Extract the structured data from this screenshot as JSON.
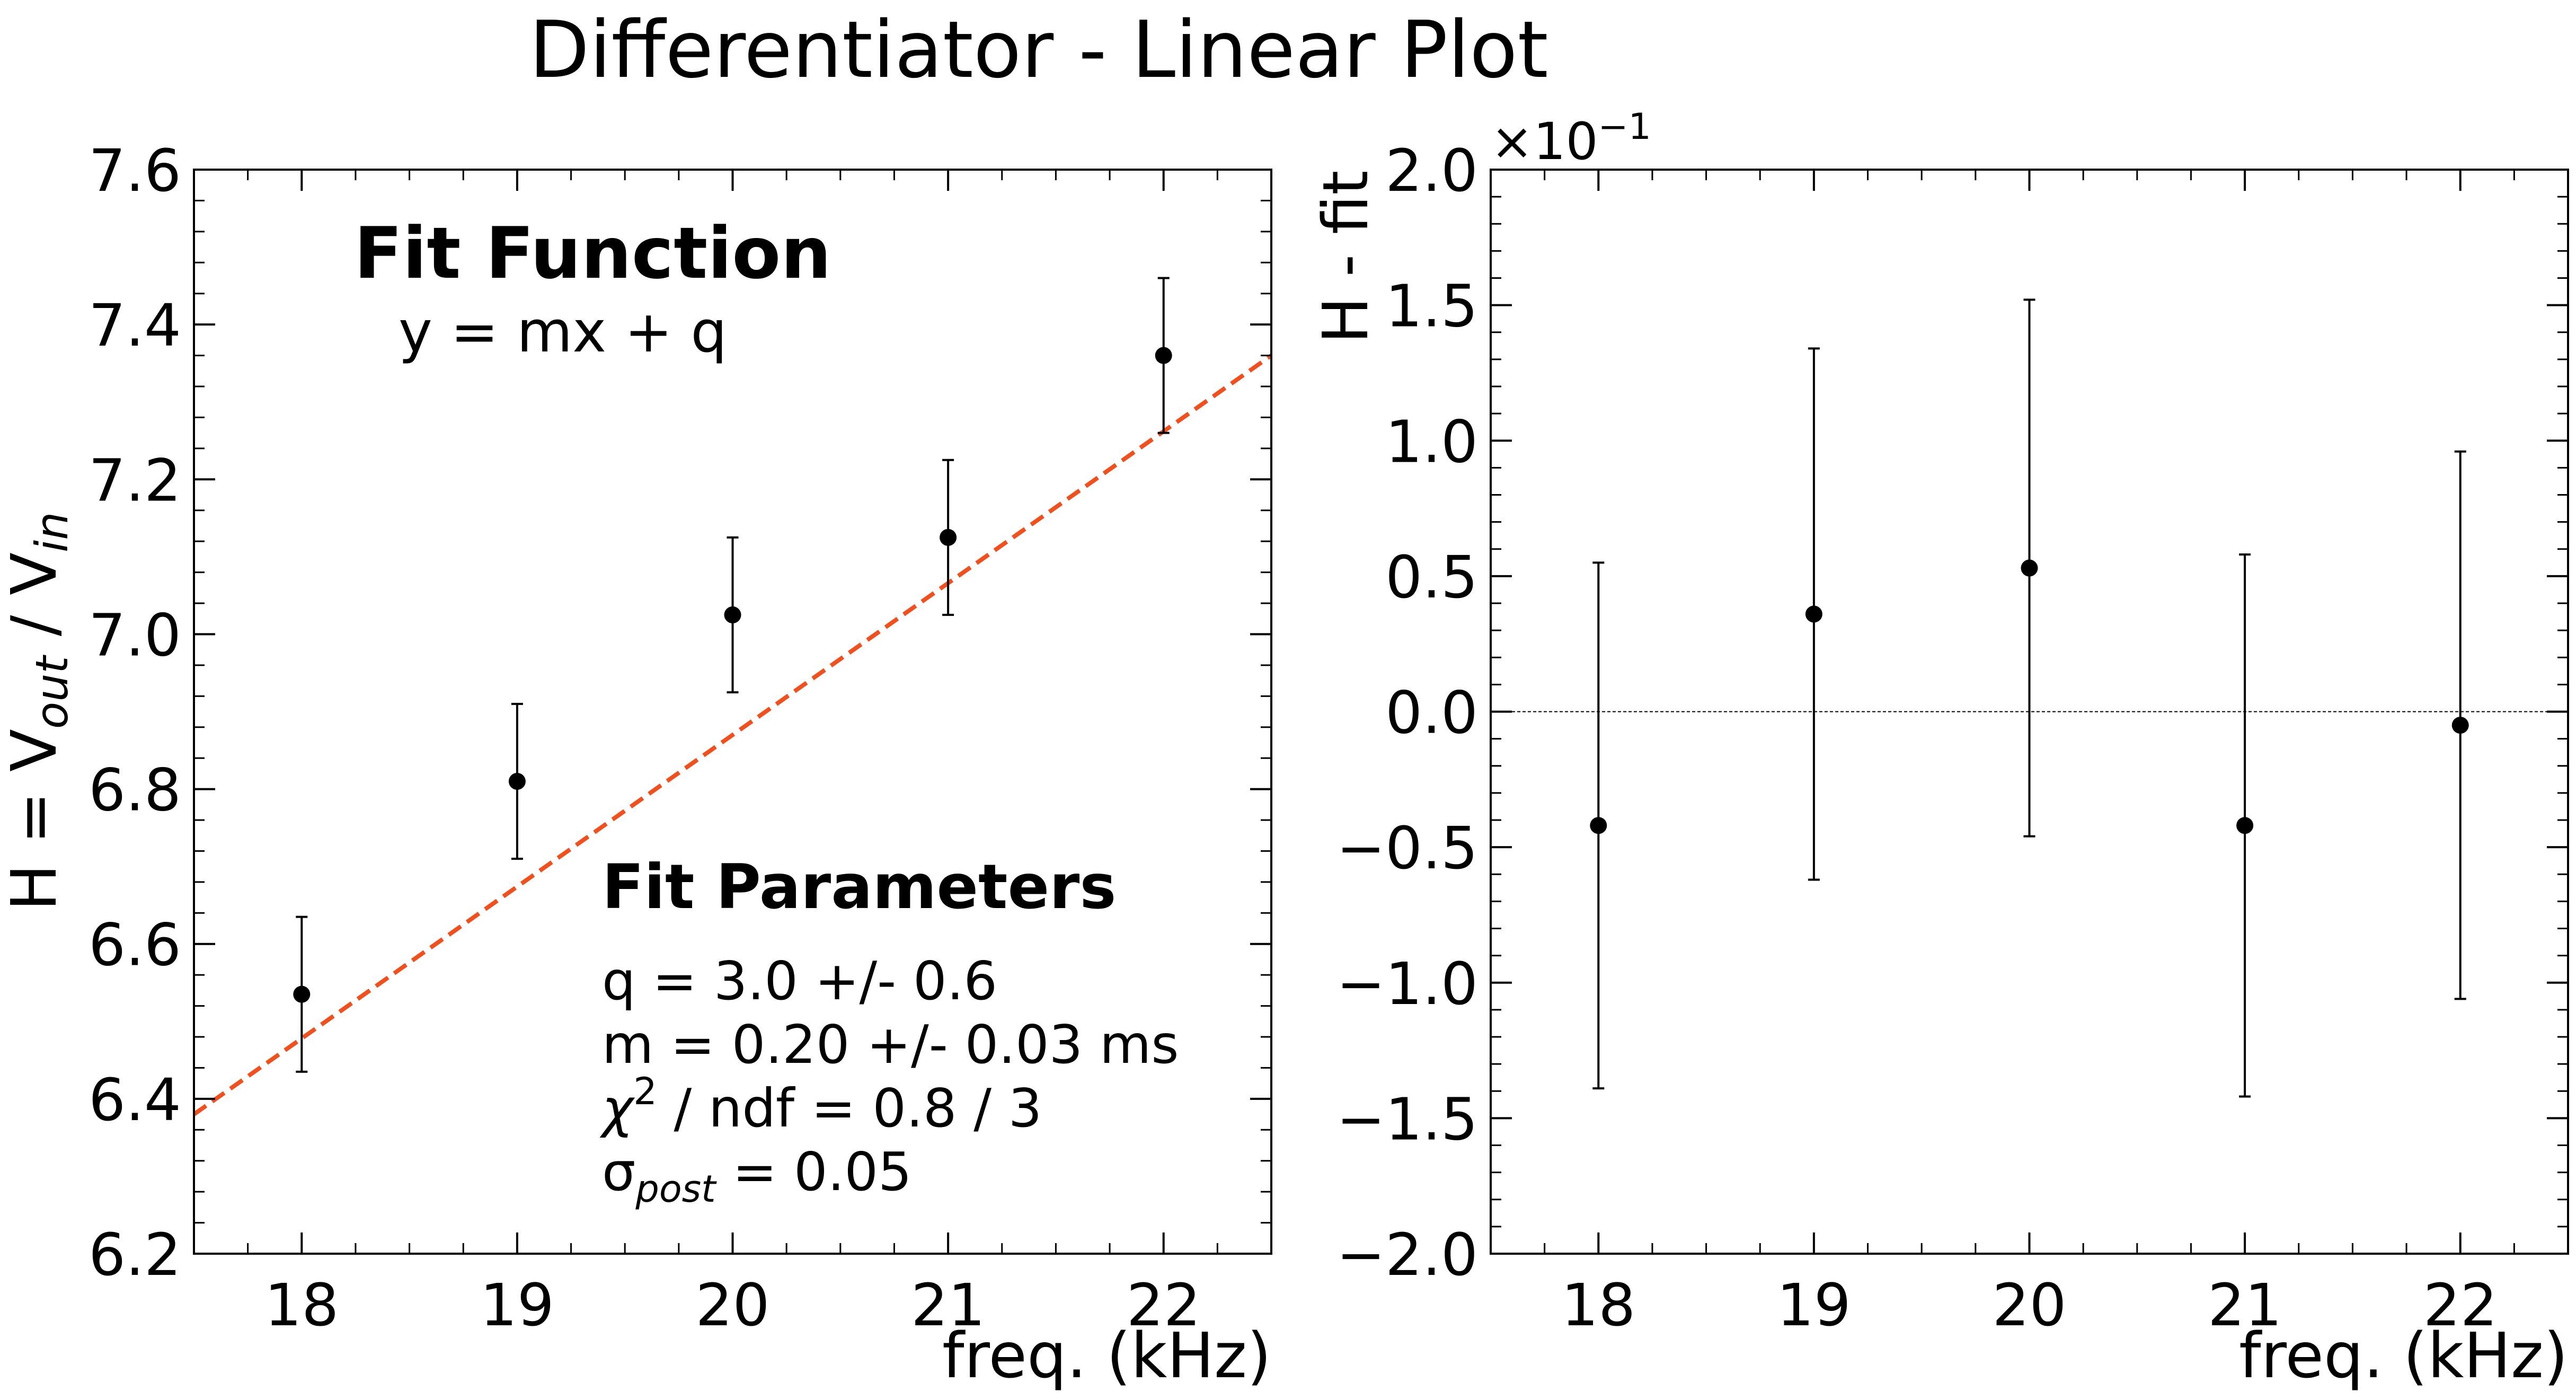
{
  "figure": {
    "title": "Differentiator - Linear Plot"
  },
  "left_panel": {
    "ylabel_parts": [
      "H = V",
      "out",
      " / V",
      "in"
    ],
    "xlabel": "freq. (kHz)",
    "fit_function_title": "Fit Function",
    "fit_function_expr": "y = mx + q",
    "fit_params_title": "Fit Parameters",
    "param_q": "q = 3.0 +/- 0.6",
    "param_m": "m = 0.20 +/- 0.03 ms",
    "param_chi_symbol": "χ",
    "param_chi_exp": "2",
    "param_chi_rest": " / ndf = 0.8 / 3",
    "param_sigma_symbol": "σ",
    "param_sigma_sub": "post",
    "param_sigma_rest": " = 0.05"
  },
  "right_panel": {
    "ylabel": "H - fit",
    "xlabel": "freq. (kHz)",
    "offset_base": "×10",
    "offset_exp": "−1"
  },
  "colors": {
    "points": "#000000",
    "fit_line": "#f0501e",
    "zero_line": "#000000"
  },
  "chart_data": [
    {
      "type": "scatter",
      "title": "",
      "xlabel": "freq. (kHz)",
      "ylabel": "H = Vout / Vin",
      "xlim": [
        17.5,
        22.5
      ],
      "ylim": [
        6.2,
        7.6
      ],
      "xticks": [
        18,
        19,
        20,
        21,
        22
      ],
      "xtick_labels": [
        "18",
        "19",
        "20",
        "21",
        "22"
      ],
      "yticks": [
        6.2,
        6.4,
        6.6,
        6.8,
        7.0,
        7.2,
        7.4,
        7.6
      ],
      "ytick_labels": [
        "6.2",
        "6.4",
        "6.6",
        "6.8",
        "7.0",
        "7.2",
        "7.4",
        "7.6"
      ],
      "x": [
        18,
        19,
        20,
        21,
        22
      ],
      "y": [
        6.535,
        6.81,
        7.025,
        7.125,
        7.36
      ],
      "yerr": [
        0.1,
        0.1,
        0.1,
        0.1,
        0.1
      ],
      "fit_line": {
        "slope": 0.196,
        "intercept": 2.95,
        "style": "dashed"
      },
      "grid": false
    },
    {
      "type": "scatter",
      "title": "",
      "xlabel": "freq. (kHz)",
      "ylabel": "H - fit",
      "xlim": [
        17.5,
        22.5
      ],
      "ylim": [
        -2.0,
        2.0
      ],
      "y_scale_factor": "×10^-1",
      "xticks": [
        18,
        19,
        20,
        21,
        22
      ],
      "xtick_labels": [
        "18",
        "19",
        "20",
        "21",
        "22"
      ],
      "yticks": [
        -2.0,
        -1.5,
        -1.0,
        -0.5,
        0.0,
        0.5,
        1.0,
        1.5,
        2.0
      ],
      "ytick_labels": [
        "−2.0",
        "−1.5",
        "−1.0",
        "−0.5",
        "0.0",
        "0.5",
        "1.0",
        "1.5",
        "2.0"
      ],
      "x": [
        18,
        19,
        20,
        21,
        22
      ],
      "y": [
        -0.42,
        0.36,
        0.53,
        -0.42,
        -0.05
      ],
      "yerr": [
        0.97,
        0.98,
        0.99,
        1.0,
        1.01
      ],
      "zero_line": true,
      "grid": false
    }
  ]
}
